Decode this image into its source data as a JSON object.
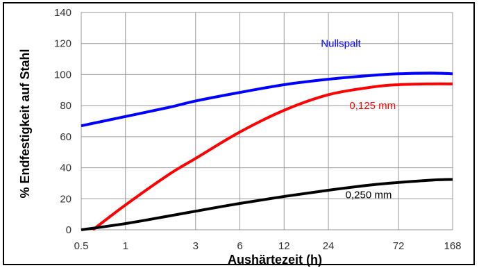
{
  "chart_data": {
    "type": "line",
    "xlabel": "Aushärtezeit (h)",
    "ylabel": "% Endfestigkeit auf Stahl",
    "x_scale": "log",
    "xlim": [
      0.5,
      168
    ],
    "ylim": [
      0,
      140
    ],
    "x_ticks": [
      {
        "value": 0.5,
        "label": "0.5"
      },
      {
        "value": 1,
        "label": "1"
      },
      {
        "value": 3,
        "label": "3"
      },
      {
        "value": 6,
        "label": "6"
      },
      {
        "value": 12,
        "label": "12"
      },
      {
        "value": 24,
        "label": "24"
      },
      {
        "value": 72,
        "label": "72"
      },
      {
        "value": 168,
        "label": "168"
      }
    ],
    "y_ticks": [
      0,
      20,
      40,
      60,
      80,
      100,
      120,
      140
    ],
    "grid": true,
    "legend": "none (inline labels)",
    "series": [
      {
        "name": "Nullspalt",
        "color": "#0000ff",
        "x": [
          0.5,
          1,
          2,
          3,
          6,
          12,
          24,
          48,
          72,
          120,
          168
        ],
        "y": [
          67,
          73,
          79,
          83,
          88.5,
          93.5,
          97,
          99.5,
          100.5,
          101,
          100.5
        ]
      },
      {
        "name": "0,125 mm",
        "color": "#ff0000",
        "x": [
          0.6,
          1,
          2,
          3,
          6,
          12,
          24,
          48,
          72,
          120,
          168
        ],
        "y": [
          0,
          16,
          36,
          46,
          63,
          77,
          87,
          92,
          93.5,
          94,
          94
        ]
      },
      {
        "name": "0,250 mm",
        "color": "#000000",
        "x": [
          0.5,
          1,
          2,
          3,
          6,
          12,
          24,
          48,
          72,
          120,
          168
        ],
        "y": [
          0,
          4,
          9,
          12,
          17,
          21.5,
          25.5,
          29,
          30.5,
          32,
          32.5
        ]
      }
    ]
  }
}
